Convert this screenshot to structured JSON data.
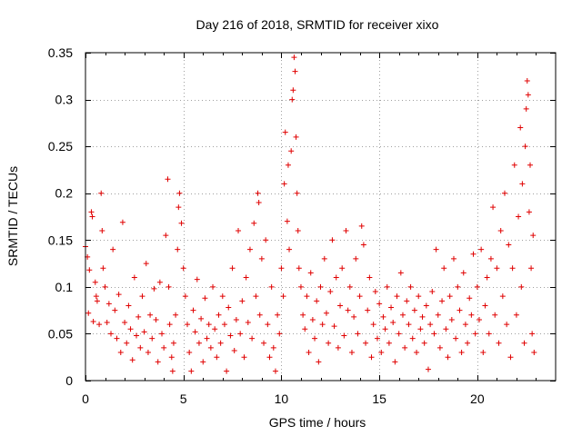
{
  "chart_data": {
    "type": "scatter",
    "title": "Day 216 of 2018, SRMTID for receiver xixo",
    "xlabel": "GPS time / hours",
    "ylabel": "SRMTID / TECUs",
    "xlim": [
      0,
      24
    ],
    "ylim": [
      0,
      0.35
    ],
    "x_ticks": [
      0,
      5,
      10,
      15,
      20
    ],
    "x_tick_labels": [
      "0",
      "5",
      "10",
      "15",
      "20"
    ],
    "y_ticks": [
      0,
      0.05,
      0.1,
      0.15,
      0.2,
      0.25,
      0.3,
      0.35
    ],
    "y_tick_labels": [
      "0",
      "0.05",
      "0.1",
      "0.15",
      "0.2",
      "0.25",
      "0.3",
      "0.35"
    ],
    "grid": true,
    "marker": "+",
    "color": "#e00000",
    "series": [
      {
        "name": "SRMTID",
        "points": [
          [
            0.0,
            0.143
          ],
          [
            0.1,
            0.132
          ],
          [
            0.15,
            0.072
          ],
          [
            0.2,
            0.118
          ],
          [
            0.3,
            0.18
          ],
          [
            0.35,
            0.175
          ],
          [
            0.4,
            0.063
          ],
          [
            0.5,
            0.105
          ],
          [
            0.55,
            0.09
          ],
          [
            0.6,
            0.085
          ],
          [
            0.7,
            0.06
          ],
          [
            0.8,
            0.2
          ],
          [
            0.85,
            0.16
          ],
          [
            0.9,
            0.12
          ],
          [
            1.0,
            0.1
          ],
          [
            1.1,
            0.062
          ],
          [
            1.2,
            0.082
          ],
          [
            1.3,
            0.05
          ],
          [
            1.4,
            0.14
          ],
          [
            1.5,
            0.075
          ],
          [
            1.6,
            0.045
          ],
          [
            1.7,
            0.092
          ],
          [
            1.8,
            0.03
          ],
          [
            1.9,
            0.169
          ],
          [
            2.0,
            0.062
          ],
          [
            2.1,
            0.04
          ],
          [
            2.2,
            0.08
          ],
          [
            2.3,
            0.055
          ],
          [
            2.4,
            0.022
          ],
          [
            2.5,
            0.11
          ],
          [
            2.6,
            0.048
          ],
          [
            2.7,
            0.068
          ],
          [
            2.8,
            0.035
          ],
          [
            2.9,
            0.09
          ],
          [
            3.0,
            0.052
          ],
          [
            3.1,
            0.125
          ],
          [
            3.2,
            0.03
          ],
          [
            3.3,
            0.07
          ],
          [
            3.4,
            0.045
          ],
          [
            3.5,
            0.098
          ],
          [
            3.6,
            0.065
          ],
          [
            3.7,
            0.02
          ],
          [
            3.8,
            0.105
          ],
          [
            3.9,
            0.05
          ],
          [
            4.0,
            0.035
          ],
          [
            4.1,
            0.155
          ],
          [
            4.2,
            0.215
          ],
          [
            4.25,
            0.1
          ],
          [
            4.3,
            0.06
          ],
          [
            4.4,
            0.025
          ],
          [
            4.45,
            0.01
          ],
          [
            4.5,
            0.04
          ],
          [
            4.6,
            0.07
          ],
          [
            4.7,
            0.14
          ],
          [
            4.75,
            0.185
          ],
          [
            4.8,
            0.2
          ],
          [
            4.9,
            0.168
          ],
          [
            5.0,
            0.12
          ],
          [
            5.1,
            0.09
          ],
          [
            5.2,
            0.06
          ],
          [
            5.3,
            0.03
          ],
          [
            5.4,
            0.01
          ],
          [
            5.5,
            0.075
          ],
          [
            5.6,
            0.052
          ],
          [
            5.7,
            0.108
          ],
          [
            5.8,
            0.04
          ],
          [
            5.9,
            0.066
          ],
          [
            6.0,
            0.02
          ],
          [
            6.1,
            0.088
          ],
          [
            6.2,
            0.045
          ],
          [
            6.3,
            0.06
          ],
          [
            6.4,
            0.035
          ],
          [
            6.5,
            0.1
          ],
          [
            6.6,
            0.055
          ],
          [
            6.7,
            0.025
          ],
          [
            6.8,
            0.07
          ],
          [
            6.9,
            0.04
          ],
          [
            7.0,
            0.09
          ],
          [
            7.1,
            0.06
          ],
          [
            7.2,
            0.01
          ],
          [
            7.3,
            0.078
          ],
          [
            7.4,
            0.048
          ],
          [
            7.5,
            0.12
          ],
          [
            7.6,
            0.032
          ],
          [
            7.7,
            0.065
          ],
          [
            7.8,
            0.16
          ],
          [
            7.9,
            0.05
          ],
          [
            8.0,
            0.085
          ],
          [
            8.1,
            0.025
          ],
          [
            8.2,
            0.11
          ],
          [
            8.3,
            0.062
          ],
          [
            8.4,
            0.14
          ],
          [
            8.5,
            0.045
          ],
          [
            8.6,
            0.168
          ],
          [
            8.7,
            0.09
          ],
          [
            8.8,
            0.2
          ],
          [
            8.85,
            0.19
          ],
          [
            8.9,
            0.07
          ],
          [
            9.0,
            0.13
          ],
          [
            9.1,
            0.04
          ],
          [
            9.2,
            0.15
          ],
          [
            9.3,
            0.06
          ],
          [
            9.4,
            0.025
          ],
          [
            9.5,
            0.1
          ],
          [
            9.6,
            0.035
          ],
          [
            9.7,
            0.01
          ],
          [
            9.8,
            0.07
          ],
          [
            9.9,
            0.05
          ],
          [
            10.0,
            0.12
          ],
          [
            10.1,
            0.09
          ],
          [
            10.15,
            0.21
          ],
          [
            10.2,
            0.265
          ],
          [
            10.3,
            0.17
          ],
          [
            10.35,
            0.23
          ],
          [
            10.4,
            0.14
          ],
          [
            10.5,
            0.245
          ],
          [
            10.55,
            0.3
          ],
          [
            10.6,
            0.31
          ],
          [
            10.65,
            0.345
          ],
          [
            10.7,
            0.33
          ],
          [
            10.75,
            0.26
          ],
          [
            10.8,
            0.2
          ],
          [
            10.85,
            0.16
          ],
          [
            10.9,
            0.12
          ],
          [
            11.0,
            0.1
          ],
          [
            11.1,
            0.07
          ],
          [
            11.2,
            0.055
          ],
          [
            11.3,
            0.09
          ],
          [
            11.4,
            0.03
          ],
          [
            11.5,
            0.115
          ],
          [
            11.6,
            0.065
          ],
          [
            11.7,
            0.045
          ],
          [
            11.8,
            0.085
          ],
          [
            11.9,
            0.02
          ],
          [
            12.0,
            0.1
          ],
          [
            12.1,
            0.06
          ],
          [
            12.2,
            0.13
          ],
          [
            12.3,
            0.072
          ],
          [
            12.4,
            0.04
          ],
          [
            12.5,
            0.095
          ],
          [
            12.6,
            0.15
          ],
          [
            12.7,
            0.058
          ],
          [
            12.8,
            0.11
          ],
          [
            12.9,
            0.035
          ],
          [
            13.0,
            0.08
          ],
          [
            13.1,
            0.12
          ],
          [
            13.2,
            0.048
          ],
          [
            13.3,
            0.16
          ],
          [
            13.4,
            0.075
          ],
          [
            13.5,
            0.1
          ],
          [
            13.6,
            0.03
          ],
          [
            13.7,
            0.068
          ],
          [
            13.8,
            0.13
          ],
          [
            13.9,
            0.05
          ],
          [
            14.0,
            0.09
          ],
          [
            14.1,
            0.165
          ],
          [
            14.2,
            0.145
          ],
          [
            14.3,
            0.04
          ],
          [
            14.4,
            0.075
          ],
          [
            14.5,
            0.11
          ],
          [
            14.6,
            0.025
          ],
          [
            14.7,
            0.06
          ],
          [
            14.8,
            0.095
          ],
          [
            14.9,
            0.045
          ],
          [
            15.0,
            0.082
          ],
          [
            15.1,
            0.03
          ],
          [
            15.2,
            0.068
          ],
          [
            15.3,
            0.055
          ],
          [
            15.4,
            0.1
          ],
          [
            15.5,
            0.04
          ],
          [
            15.6,
            0.078
          ],
          [
            15.7,
            0.062
          ],
          [
            15.8,
            0.02
          ],
          [
            15.9,
            0.09
          ],
          [
            16.0,
            0.05
          ],
          [
            16.1,
            0.115
          ],
          [
            16.2,
            0.07
          ],
          [
            16.3,
            0.035
          ],
          [
            16.4,
            0.085
          ],
          [
            16.5,
            0.06
          ],
          [
            16.6,
            0.1
          ],
          [
            16.7,
            0.045
          ],
          [
            16.8,
            0.075
          ],
          [
            16.9,
            0.03
          ],
          [
            17.0,
            0.09
          ],
          [
            17.1,
            0.055
          ],
          [
            17.2,
            0.068
          ],
          [
            17.3,
            0.04
          ],
          [
            17.4,
            0.08
          ],
          [
            17.5,
            0.012
          ],
          [
            17.6,
            0.06
          ],
          [
            17.7,
            0.095
          ],
          [
            17.8,
            0.05
          ],
          [
            17.9,
            0.14
          ],
          [
            18.0,
            0.07
          ],
          [
            18.1,
            0.035
          ],
          [
            18.2,
            0.085
          ],
          [
            18.3,
            0.12
          ],
          [
            18.4,
            0.055
          ],
          [
            18.5,
            0.025
          ],
          [
            18.6,
            0.09
          ],
          [
            18.7,
            0.065
          ],
          [
            18.8,
            0.13
          ],
          [
            18.9,
            0.045
          ],
          [
            19.0,
            0.1
          ],
          [
            19.1,
            0.075
          ],
          [
            19.2,
            0.03
          ],
          [
            19.3,
            0.115
          ],
          [
            19.4,
            0.06
          ],
          [
            19.5,
            0.04
          ],
          [
            19.6,
            0.088
          ],
          [
            19.7,
            0.07
          ],
          [
            19.8,
            0.135
          ],
          [
            19.9,
            0.05
          ],
          [
            20.0,
            0.1
          ],
          [
            20.1,
            0.065
          ],
          [
            20.2,
            0.14
          ],
          [
            20.3,
            0.03
          ],
          [
            20.4,
            0.08
          ],
          [
            20.5,
            0.11
          ],
          [
            20.6,
            0.05
          ],
          [
            20.7,
            0.13
          ],
          [
            20.8,
            0.185
          ],
          [
            20.9,
            0.07
          ],
          [
            21.0,
            0.12
          ],
          [
            21.1,
            0.04
          ],
          [
            21.2,
            0.16
          ],
          [
            21.3,
            0.09
          ],
          [
            21.4,
            0.2
          ],
          [
            21.5,
            0.06
          ],
          [
            21.6,
            0.145
          ],
          [
            21.7,
            0.025
          ],
          [
            21.8,
            0.12
          ],
          [
            21.9,
            0.23
          ],
          [
            22.0,
            0.07
          ],
          [
            22.1,
            0.175
          ],
          [
            22.2,
            0.27
          ],
          [
            22.25,
            0.1
          ],
          [
            22.3,
            0.21
          ],
          [
            22.4,
            0.04
          ],
          [
            22.45,
            0.25
          ],
          [
            22.5,
            0.29
          ],
          [
            22.55,
            0.32
          ],
          [
            22.6,
            0.305
          ],
          [
            22.65,
            0.18
          ],
          [
            22.7,
            0.23
          ],
          [
            22.75,
            0.12
          ],
          [
            22.8,
            0.05
          ],
          [
            22.85,
            0.155
          ],
          [
            22.9,
            0.03
          ]
        ]
      }
    ]
  }
}
